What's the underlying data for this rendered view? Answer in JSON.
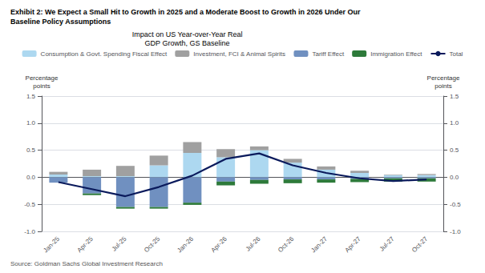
{
  "chart_data": {
    "type": "bar",
    "title": "Exhibit 2: We Expect a Small Hit to Growth in 2025 and a Moderate Boost to Growth in 2026 Under Our\nBaseline Policy Assumptions",
    "subtitle": "Impact on US Year-over-Year Real\nGDP Growth, GS Baseline",
    "annotations": [
      "Source: Goldman Sachs Global Investment Research"
    ],
    "ylabel": "Percentage\npoints",
    "y2label": "Percentage\npoints",
    "categories": [
      "Jan-25",
      "Apr-25",
      "Jul-25",
      "Oct-25",
      "Jan-26",
      "Apr-26",
      "Jul-26",
      "Oct-26",
      "Jan-27",
      "Apr-27",
      "Jul-27",
      "Oct-27"
    ],
    "stacked": true,
    "series": [
      {
        "name": "Consumption & Govt. Spending Fiscal Effect",
        "type": "bar",
        "color": "#add8f0",
        "values": [
          0.05,
          0.02,
          0.02,
          0.22,
          0.45,
          0.37,
          0.5,
          0.27,
          0.14,
          0.08,
          0.04,
          0.04
        ]
      },
      {
        "name": "Investment, FCI & Animal Spirits",
        "type": "bar",
        "color": "#a0a0a0",
        "values": [
          0.05,
          0.12,
          0.19,
          0.18,
          0.2,
          0.15,
          0.07,
          0.07,
          0.06,
          0.04,
          0.01,
          0.02
        ]
      },
      {
        "name": "Tariff Effect",
        "type": "bar",
        "color": "#7090c0",
        "values": [
          -0.1,
          -0.3,
          -0.55,
          -0.55,
          -0.47,
          -0.08,
          -0.05,
          -0.04,
          -0.04,
          -0.03,
          -0.02,
          -0.02
        ]
      },
      {
        "name": "Immigration Effect",
        "type": "bar",
        "color": "#2d7a3a",
        "values": [
          0.0,
          -0.03,
          -0.03,
          -0.03,
          -0.04,
          -0.07,
          -0.07,
          -0.07,
          -0.06,
          -0.06,
          -0.06,
          -0.06
        ]
      },
      {
        "name": "Total",
        "type": "line",
        "color": "#0a1a5c",
        "values": [
          -0.09,
          -0.22,
          -0.35,
          -0.18,
          0.03,
          0.34,
          0.44,
          0.22,
          0.08,
          -0.02,
          -0.07,
          -0.04
        ]
      }
    ],
    "ylim": [
      -1.0,
      1.5
    ],
    "yticks": [
      {
        "value": -1.0,
        "label": "-1.0"
      },
      -0.5,
      {
        "value": 0.0,
        "label": "0.0"
      },
      0.5,
      {
        "value": 1.0,
        "label": "1.0"
      },
      {
        "value": 1.5,
        "label": "1.5"
      }
    ],
    "y2lim": [
      -1.0,
      1.5
    ],
    "y2ticks": [
      {
        "value": -1.0,
        "label": "-1.0"
      },
      -0.5,
      {
        "value": 0.0,
        "label": "0.0"
      },
      0.5,
      {
        "value": 1.0,
        "label": "1.0"
      },
      {
        "value": 1.5,
        "label": "1.5"
      }
    ],
    "grid": true,
    "legend": "top"
  }
}
